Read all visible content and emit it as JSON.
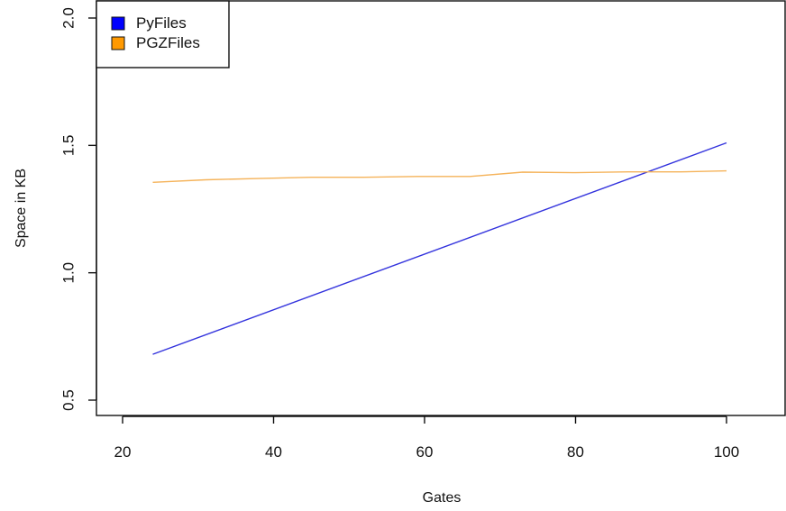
{
  "chart_data": {
    "type": "line",
    "xlabel": "Gates",
    "ylabel": "Space in KB",
    "xlim": [
      16,
      110
    ],
    "ylim": [
      0.5,
      2.0
    ],
    "x_ticks": [
      "20",
      "40",
      "60",
      "80",
      "100"
    ],
    "y_ticks": [
      "0.5",
      "1.0",
      "1.5",
      "2.0"
    ],
    "legend": {
      "position": "top-left",
      "entries": [
        {
          "name": "PyFiles",
          "color": "#0000ff"
        },
        {
          "name": "PGZFiles",
          "color": "#ff9900"
        }
      ]
    },
    "series": [
      {
        "name": "PyFiles",
        "color": "#3333dd",
        "x": [
          24,
          100
        ],
        "y": [
          0.68,
          1.51
        ]
      },
      {
        "name": "PGZFiles",
        "color": "#f5b35a",
        "x": [
          24,
          31,
          38,
          45,
          52,
          59,
          66,
          73,
          80,
          87,
          94,
          100
        ],
        "y": [
          1.355,
          1.365,
          1.37,
          1.375,
          1.375,
          1.378,
          1.378,
          1.395,
          1.393,
          1.396,
          1.396,
          1.4
        ]
      }
    ]
  }
}
